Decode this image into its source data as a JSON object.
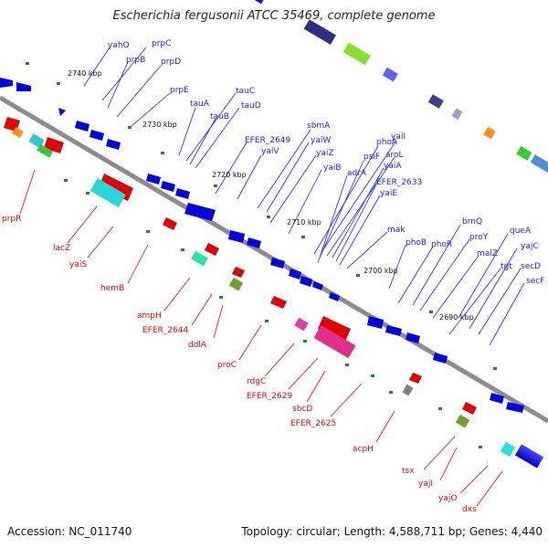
{
  "title": "Escherichia fergusonii ATCC 35469, complete genome",
  "footer": {
    "accession": "Accession: NC_011740",
    "stats": "Topology: circular; Length: 4,588,711 bp; Genes: 4,440"
  },
  "colors": {
    "backbone": "#8c8c8c",
    "forward_label": "#1a1aff",
    "reverse_label": "#e00000"
  },
  "ticks": [
    "2740 kbp",
    "2730 kbp",
    "2720 kbp",
    "2710 kbp",
    "2700 kbp",
    "2690 kbp"
  ],
  "forward_labels": [
    "yahO",
    "prpC",
    "prpB",
    "prpD",
    "prpE",
    "tauC",
    "tauA",
    "tauB",
    "tauD",
    "EFER_2649",
    "yaiV",
    "sbmA",
    "yaiW",
    "yaiZ",
    "yaiB",
    "phoA",
    "psiF",
    "adrA",
    "yaiI",
    "aroL",
    "yaiA",
    "EFER_2633",
    "yaiE",
    "mak",
    "phoB",
    "phoR",
    "brnQ",
    "proY",
    "malZ",
    "queA",
    "yajC",
    "tgt",
    "secD",
    "secF"
  ],
  "reverse_labels": [
    "prpR",
    "lacZ",
    "yaiS",
    "hemB",
    "ampH",
    "EFER_2644",
    "ddlA",
    "proC",
    "rdgC",
    "EFER_2629",
    "sbcD",
    "EFER_2625",
    "acpH",
    "tsx",
    "yajI",
    "yajO",
    "dxs"
  ]
}
